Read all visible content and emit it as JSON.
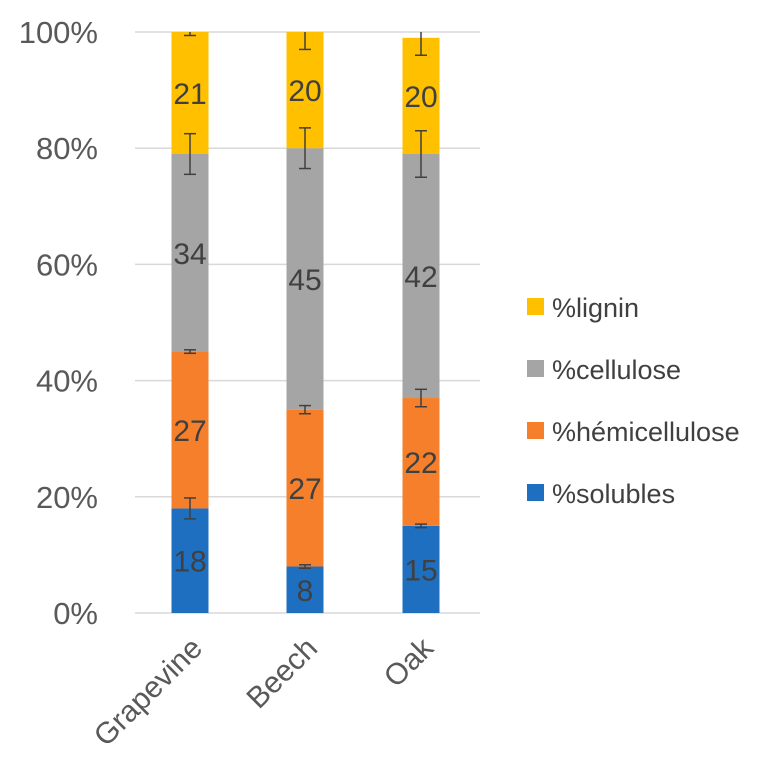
{
  "chart_data": {
    "type": "bar",
    "stacked": true,
    "percent_stacked": true,
    "categories": [
      "Grapevine",
      "Beech",
      "Oak"
    ],
    "ylim": [
      0,
      100
    ],
    "y_ticks": [
      "0%",
      "20%",
      "40%",
      "60%",
      "80%",
      "100%"
    ],
    "y_tick_values": [
      0,
      20,
      40,
      60,
      80,
      100
    ],
    "grid": true,
    "legend_position": "right",
    "series": [
      {
        "name": "%solubles",
        "color": "#1f6fc1",
        "values": [
          18,
          8,
          15
        ],
        "labels": [
          "18",
          "8",
          "15"
        ],
        "error": [
          1.8,
          0.3,
          0.3
        ]
      },
      {
        "name": "%hémicellulose",
        "color": "#f57f2a",
        "values": [
          27,
          27,
          22
        ],
        "labels": [
          "27",
          "27",
          "22"
        ],
        "error": [
          0.3,
          0.7,
          1.5
        ]
      },
      {
        "name": "%cellulose",
        "color": "#a5a5a5",
        "values": [
          34,
          45,
          42
        ],
        "labels": [
          "34",
          "45",
          "42"
        ],
        "error": [
          3.5,
          3.5,
          4.0
        ]
      },
      {
        "name": "%lignin",
        "color": "#ffc000",
        "values": [
          21,
          20,
          20
        ],
        "labels": [
          "21",
          "20",
          "20"
        ],
        "error": [
          0.6,
          3.0,
          3.0
        ]
      }
    ]
  }
}
